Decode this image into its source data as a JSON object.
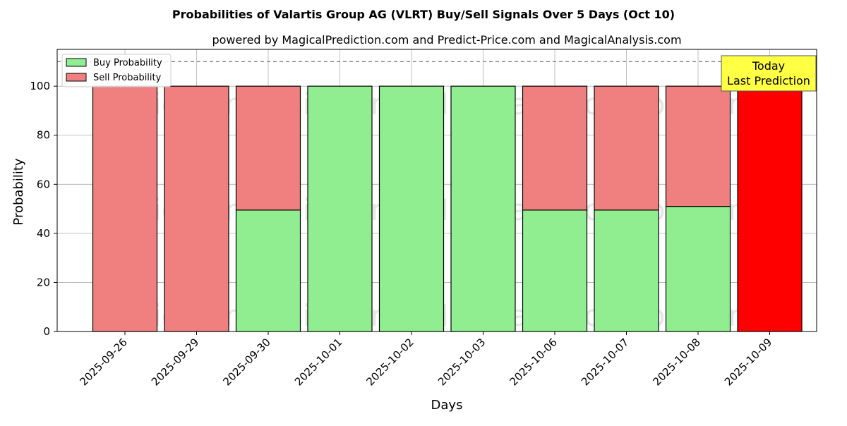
{
  "chart_data": {
    "type": "bar",
    "stacked": true,
    "title": "Probabilities of Valartis Group AG (VLRT) Buy/Sell Signals Over 5 Days (Oct 10)",
    "subtitle": "powered by MagicalPrediction.com and Predict-Price.com and MagicalAnalysis.com",
    "xlabel": "Days",
    "ylabel": "Probability",
    "ylim": [
      0,
      115
    ],
    "yticks": [
      "0",
      "20",
      "40",
      "60",
      "80",
      "100"
    ],
    "grid": true,
    "legend_position": "top-left",
    "categories": [
      "2025-09-26",
      "2025-09-29",
      "2025-09-30",
      "2025-10-01",
      "2025-10-02",
      "2025-10-03",
      "2025-10-06",
      "2025-10-07",
      "2025-10-08",
      "2025-10-09"
    ],
    "series": [
      {
        "name": "Buy Probability",
        "color": "#90ee90",
        "values": [
          0,
          0,
          49.5,
          100,
          100,
          100,
          49.5,
          49.5,
          51,
          0
        ]
      },
      {
        "name": "Sell Probability",
        "color": "#f08080",
        "values": [
          100,
          100,
          50.5,
          0,
          0,
          0,
          50.5,
          50.5,
          49,
          100
        ]
      }
    ],
    "highlight": {
      "category": "2025-10-09",
      "color": "#ff0000"
    },
    "reference_line": {
      "y": 110,
      "style": "dashed",
      "color": "#808080"
    },
    "annotation": {
      "line1": "Today",
      "line2": "Last Prediction",
      "background": "#ffff44"
    },
    "watermarks": [
      "MagicalAnalysis.com",
      "MagicalPrediction.com"
    ]
  }
}
